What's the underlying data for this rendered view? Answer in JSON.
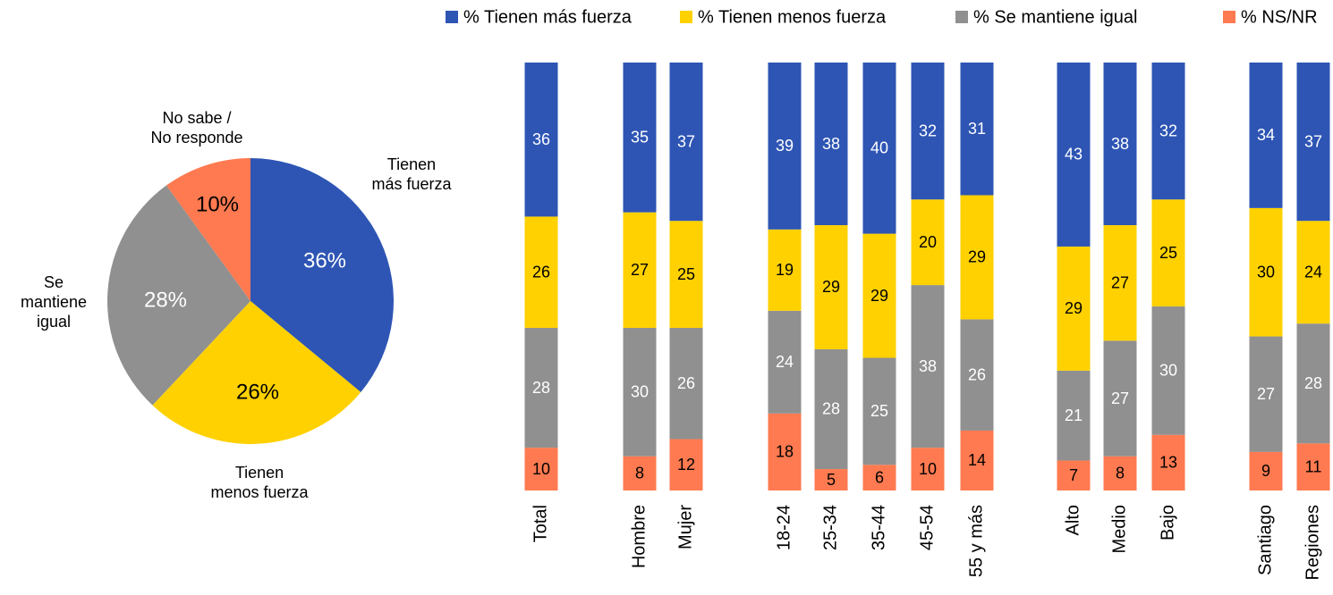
{
  "chart_data": [
    {
      "type": "pie",
      "categories": [
        "Tienen\nmás fuerza",
        "Tienen\nmenos fuerza",
        "Se\nmantiene\nigual",
        "No sabe /\nNo responde"
      ],
      "values": [
        36,
        26,
        28,
        10
      ],
      "value_labels": [
        "36%",
        "26%",
        "28%",
        "10%"
      ],
      "colors": [
        "#2e55b4",
        "#ffd100",
        "#909090",
        "#ff7a50"
      ]
    },
    {
      "type": "stacked_bar",
      "categories": [
        "Total",
        "Hombre",
        "Mujer",
        "18-24",
        "25-34",
        "35-44",
        "45-54",
        "55 y más",
        "Alto",
        "Medio",
        "Bajo",
        "Santiago",
        "Regiones"
      ],
      "series": [
        {
          "name": "% Tienen más fuerza",
          "color": "#2e55b4",
          "values": [
            36,
            35,
            37,
            39,
            38,
            40,
            32,
            31,
            43,
            38,
            32,
            34,
            37
          ]
        },
        {
          "name": "% Tienen menos fuerza",
          "color": "#ffd100",
          "values": [
            26,
            27,
            25,
            19,
            29,
            29,
            20,
            29,
            29,
            27,
            25,
            30,
            24
          ]
        },
        {
          "name": "% Se mantiene igual",
          "color": "#909090",
          "values": [
            28,
            30,
            26,
            24,
            28,
            25,
            38,
            26,
            21,
            27,
            30,
            27,
            28
          ]
        },
        {
          "name": "% NS/NR",
          "color": "#ff7a50",
          "values": [
            10,
            8,
            12,
            18,
            5,
            6,
            10,
            14,
            7,
            8,
            13,
            9,
            11
          ]
        }
      ],
      "ylim": [
        0,
        100
      ],
      "legend": "top"
    }
  ]
}
